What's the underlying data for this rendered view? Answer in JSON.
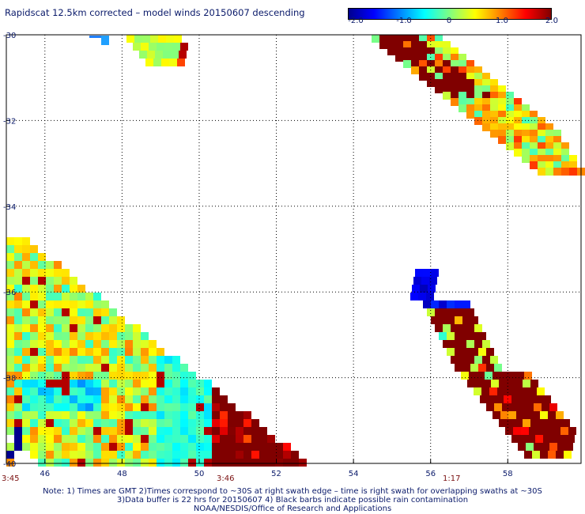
{
  "header": {
    "title": "Rapidscat 12.5km corrected – model winds 20150607 descending"
  },
  "colorbar": {
    "ticks": [
      "-2.0",
      "-1.0",
      "0",
      "1.0",
      "2.0"
    ],
    "tick_values": [
      -2.0,
      -1.0,
      0,
      1.0,
      2.0
    ],
    "colors": [
      "#00008f",
      "#0000ff",
      "#0080ff",
      "#00ffff",
      "#80ff80",
      "#ffff00",
      "#ff8000",
      "#ff0000",
      "#800000"
    ]
  },
  "map": {
    "lon_range": [
      45.0,
      59.9
    ],
    "lat_range": [
      -40.0,
      -30.0
    ],
    "lon_ticks": [
      "46",
      "48",
      "50",
      "52",
      "54",
      "56",
      "58"
    ],
    "lat_ticks": [
      "-30",
      "-32",
      "-34",
      "-36",
      "-38",
      "-40"
    ],
    "swath_times": [
      {
        "label": "3:45",
        "lon": 45.0
      },
      {
        "label": "3:46",
        "lon": 51.6
      },
      {
        "label": "1:17",
        "lon": 55.6
      }
    ]
  },
  "notes": [
    "Note: 1) Times are GMT 2)Times correspond to ~30S at right swath edge – time is right swath for overlapping swaths at ~30S",
    "3)Data buffer is 22 hrs for 20150607 4) Black barbs indicate possible rain contamination",
    "NOAA/NESDIS/Office of Research and Applications"
  ]
}
